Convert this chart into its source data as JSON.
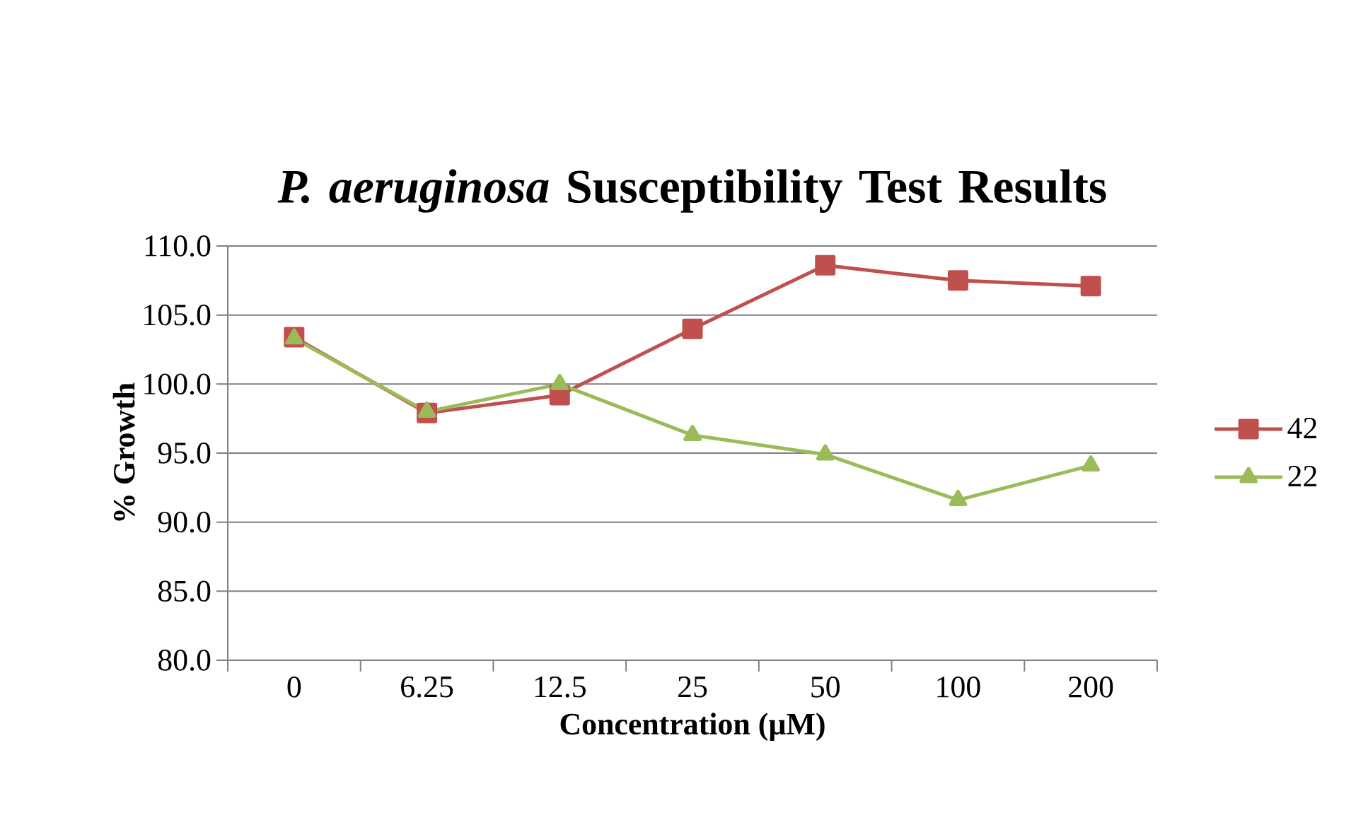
{
  "chart_data": {
    "type": "line",
    "title": "*P. aeruginosa* Susceptibility Test Results",
    "xlabel": "Concentration (µM)",
    "ylabel": "% Growth",
    "categories": [
      "0",
      "6.25",
      "12.5",
      "25",
      "50",
      "100",
      "200"
    ],
    "series": [
      {
        "name": "42",
        "color": "#c0504d",
        "marker": "square",
        "values": [
          103.4,
          97.9,
          99.2,
          104.0,
          108.6,
          107.5,
          107.1
        ]
      },
      {
        "name": "22",
        "color": "#9bbb59",
        "marker": "triangle",
        "values": [
          103.3,
          98.0,
          100.0,
          96.3,
          94.9,
          91.6,
          94.1
        ]
      }
    ],
    "ylim": [
      80,
      110
    ],
    "yticks": [
      {
        "value": 80,
        "label": "80.0"
      },
      {
        "value": 85,
        "label": "85.0"
      },
      {
        "value": 90,
        "label": "90.0"
      },
      {
        "value": 95,
        "label": "95.0"
      },
      {
        "value": 100,
        "label": "100.0"
      },
      {
        "value": 105,
        "label": "105.0"
      },
      {
        "value": 110,
        "label": "110.0"
      }
    ],
    "grid": "y",
    "legend": "right"
  }
}
